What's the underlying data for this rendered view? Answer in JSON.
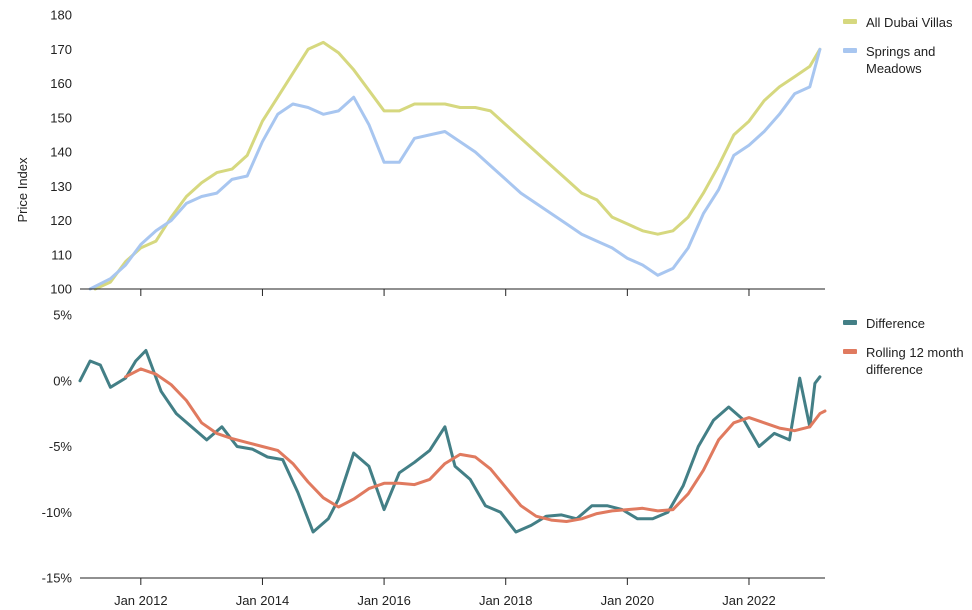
{
  "chart_data": [
    {
      "type": "line",
      "ylabel": "Price Index",
      "ylim": [
        100,
        180
      ],
      "yticks": [
        "100",
        "110",
        "120",
        "130",
        "140",
        "150",
        "160",
        "170",
        "180"
      ],
      "grid": false,
      "legend_position": "right",
      "x_start": "2011-01",
      "x_end": "2023-04",
      "series": [
        {
          "name": "All Dubai Villas",
          "color": "#d6d87f",
          "points": [
            [
              "2011-04",
              100
            ],
            [
              "2011-07",
              102
            ],
            [
              "2011-10",
              108
            ],
            [
              "2012-01",
              112
            ],
            [
              "2012-04",
              114
            ],
            [
              "2012-07",
              121
            ],
            [
              "2012-10",
              127
            ],
            [
              "2013-01",
              131
            ],
            [
              "2013-04",
              134
            ],
            [
              "2013-07",
              135
            ],
            [
              "2013-10",
              139
            ],
            [
              "2014-01",
              149
            ],
            [
              "2014-04",
              156
            ],
            [
              "2014-07",
              163
            ],
            [
              "2014-10",
              170
            ],
            [
              "2015-01",
              172
            ],
            [
              "2015-04",
              169
            ],
            [
              "2015-07",
              164
            ],
            [
              "2015-10",
              158
            ],
            [
              "2016-01",
              152
            ],
            [
              "2016-04",
              152
            ],
            [
              "2016-07",
              154
            ],
            [
              "2016-10",
              154
            ],
            [
              "2017-01",
              154
            ],
            [
              "2017-04",
              153
            ],
            [
              "2017-07",
              153
            ],
            [
              "2017-10",
              152
            ],
            [
              "2018-01",
              148
            ],
            [
              "2018-04",
              144
            ],
            [
              "2018-07",
              140
            ],
            [
              "2018-10",
              136
            ],
            [
              "2019-01",
              132
            ],
            [
              "2019-04",
              128
            ],
            [
              "2019-07",
              126
            ],
            [
              "2019-10",
              121
            ],
            [
              "2020-01",
              119
            ],
            [
              "2020-04",
              117
            ],
            [
              "2020-07",
              116
            ],
            [
              "2020-10",
              117
            ],
            [
              "2021-01",
              121
            ],
            [
              "2021-04",
              128
            ],
            [
              "2021-07",
              136
            ],
            [
              "2021-10",
              145
            ],
            [
              "2022-01",
              149
            ],
            [
              "2022-04",
              155
            ],
            [
              "2022-07",
              159
            ],
            [
              "2022-10",
              162
            ],
            [
              "2023-01",
              165
            ],
            [
              "2023-03",
              170
            ]
          ]
        },
        {
          "name": "Springs and Meadows",
          "color": "#a8c6f0",
          "points": [
            [
              "2011-03",
              100
            ],
            [
              "2011-07",
              103
            ],
            [
              "2011-10",
              107
            ],
            [
              "2012-01",
              113
            ],
            [
              "2012-04",
              117
            ],
            [
              "2012-07",
              120
            ],
            [
              "2012-10",
              125
            ],
            [
              "2013-01",
              127
            ],
            [
              "2013-04",
              128
            ],
            [
              "2013-07",
              132
            ],
            [
              "2013-10",
              133
            ],
            [
              "2014-01",
              143
            ],
            [
              "2014-04",
              151
            ],
            [
              "2014-07",
              154
            ],
            [
              "2014-10",
              153
            ],
            [
              "2015-01",
              151
            ],
            [
              "2015-04",
              152
            ],
            [
              "2015-07",
              156
            ],
            [
              "2015-10",
              148
            ],
            [
              "2016-01",
              137
            ],
            [
              "2016-04",
              137
            ],
            [
              "2016-07",
              144
            ],
            [
              "2016-10",
              145
            ],
            [
              "2017-01",
              146
            ],
            [
              "2017-04",
              143
            ],
            [
              "2017-07",
              140
            ],
            [
              "2017-10",
              136
            ],
            [
              "2018-01",
              132
            ],
            [
              "2018-04",
              128
            ],
            [
              "2018-07",
              125
            ],
            [
              "2018-10",
              122
            ],
            [
              "2019-01",
              119
            ],
            [
              "2019-04",
              116
            ],
            [
              "2019-07",
              114
            ],
            [
              "2019-10",
              112
            ],
            [
              "2020-01",
              109
            ],
            [
              "2020-04",
              107
            ],
            [
              "2020-07",
              104
            ],
            [
              "2020-10",
              106
            ],
            [
              "2021-01",
              112
            ],
            [
              "2021-04",
              122
            ],
            [
              "2021-07",
              129
            ],
            [
              "2021-10",
              139
            ],
            [
              "2022-01",
              142
            ],
            [
              "2022-04",
              146
            ],
            [
              "2022-07",
              151
            ],
            [
              "2022-10",
              157
            ],
            [
              "2023-01",
              159
            ],
            [
              "2023-03",
              170
            ]
          ]
        }
      ]
    },
    {
      "type": "line",
      "ylim": [
        -15,
        5
      ],
      "yticks": [
        "5%",
        "0%",
        "-5%",
        "-10%",
        "-15%"
      ],
      "xticks": [
        "Jan 2012",
        "Jan 2014",
        "Jan 2016",
        "Jan 2018",
        "Jan 2020",
        "Jan 2022"
      ],
      "grid": false,
      "legend_position": "right",
      "x_start": "2011-01",
      "x_end": "2023-04",
      "series": [
        {
          "name": "Difference",
          "color": "#437f86",
          "points": [
            [
              "2011-01",
              0.0
            ],
            [
              "2011-03",
              1.5
            ],
            [
              "2011-05",
              1.2
            ],
            [
              "2011-07",
              -0.5
            ],
            [
              "2011-10",
              0.2
            ],
            [
              "2011-12",
              1.5
            ],
            [
              "2012-02",
              2.3
            ],
            [
              "2012-05",
              -0.8
            ],
            [
              "2012-08",
              -2.5
            ],
            [
              "2012-11",
              -3.5
            ],
            [
              "2013-02",
              -4.5
            ],
            [
              "2013-05",
              -3.5
            ],
            [
              "2013-08",
              -5.0
            ],
            [
              "2013-11",
              -5.2
            ],
            [
              "2014-02",
              -5.8
            ],
            [
              "2014-05",
              -6.0
            ],
            [
              "2014-08",
              -8.5
            ],
            [
              "2014-11",
              -11.5
            ],
            [
              "2015-02",
              -10.5
            ],
            [
              "2015-04",
              -9.0
            ],
            [
              "2015-07",
              -5.5
            ],
            [
              "2015-10",
              -6.5
            ],
            [
              "2016-01",
              -9.8
            ],
            [
              "2016-04",
              -7.0
            ],
            [
              "2016-07",
              -6.2
            ],
            [
              "2016-10",
              -5.3
            ],
            [
              "2017-01",
              -3.5
            ],
            [
              "2017-03",
              -6.5
            ],
            [
              "2017-06",
              -7.5
            ],
            [
              "2017-09",
              -9.5
            ],
            [
              "2017-12",
              -10.0
            ],
            [
              "2018-03",
              -11.5
            ],
            [
              "2018-06",
              -11.0
            ],
            [
              "2018-09",
              -10.3
            ],
            [
              "2018-12",
              -10.2
            ],
            [
              "2019-03",
              -10.5
            ],
            [
              "2019-06",
              -9.5
            ],
            [
              "2019-09",
              -9.5
            ],
            [
              "2019-12",
              -9.8
            ],
            [
              "2020-03",
              -10.5
            ],
            [
              "2020-06",
              -10.5
            ],
            [
              "2020-09",
              -10.0
            ],
            [
              "2020-12",
              -8.0
            ],
            [
              "2021-03",
              -5.0
            ],
            [
              "2021-06",
              -3.0
            ],
            [
              "2021-09",
              -2.0
            ],
            [
              "2021-12",
              -3.0
            ],
            [
              "2022-03",
              -5.0
            ],
            [
              "2022-06",
              -4.0
            ],
            [
              "2022-09",
              -4.5
            ],
            [
              "2022-11",
              0.2
            ],
            [
              "2023-01",
              -3.5
            ],
            [
              "2023-02",
              -0.2
            ],
            [
              "2023-03",
              0.3
            ]
          ]
        },
        {
          "name": "Rolling 12 month difference",
          "color": "#e07a5f",
          "points": [
            [
              "2011-10",
              0.3
            ],
            [
              "2012-01",
              0.9
            ],
            [
              "2012-04",
              0.5
            ],
            [
              "2012-07",
              -0.3
            ],
            [
              "2012-10",
              -1.5
            ],
            [
              "2013-01",
              -3.2
            ],
            [
              "2013-04",
              -4.0
            ],
            [
              "2013-07",
              -4.4
            ],
            [
              "2013-10",
              -4.7
            ],
            [
              "2014-01",
              -5.0
            ],
            [
              "2014-04",
              -5.3
            ],
            [
              "2014-07",
              -6.3
            ],
            [
              "2014-10",
              -7.7
            ],
            [
              "2015-01",
              -8.9
            ],
            [
              "2015-04",
              -9.6
            ],
            [
              "2015-07",
              -9.0
            ],
            [
              "2015-10",
              -8.2
            ],
            [
              "2016-01",
              -7.8
            ],
            [
              "2016-04",
              -7.8
            ],
            [
              "2016-07",
              -7.9
            ],
            [
              "2016-10",
              -7.5
            ],
            [
              "2017-01",
              -6.3
            ],
            [
              "2017-04",
              -5.6
            ],
            [
              "2017-07",
              -5.8
            ],
            [
              "2017-10",
              -6.7
            ],
            [
              "2018-01",
              -8.1
            ],
            [
              "2018-04",
              -9.5
            ],
            [
              "2018-07",
              -10.3
            ],
            [
              "2018-10",
              -10.6
            ],
            [
              "2019-01",
              -10.7
            ],
            [
              "2019-04",
              -10.5
            ],
            [
              "2019-07",
              -10.1
            ],
            [
              "2019-10",
              -9.9
            ],
            [
              "2020-01",
              -9.8
            ],
            [
              "2020-04",
              -9.7
            ],
            [
              "2020-07",
              -9.9
            ],
            [
              "2020-10",
              -9.8
            ],
            [
              "2021-01",
              -8.6
            ],
            [
              "2021-04",
              -6.8
            ],
            [
              "2021-07",
              -4.5
            ],
            [
              "2021-10",
              -3.2
            ],
            [
              "2022-01",
              -2.8
            ],
            [
              "2022-04",
              -3.2
            ],
            [
              "2022-07",
              -3.6
            ],
            [
              "2022-10",
              -3.8
            ],
            [
              "2023-01",
              -3.5
            ],
            [
              "2023-03",
              -2.5
            ],
            [
              "2023-04",
              -2.3
            ]
          ]
        }
      ]
    }
  ]
}
